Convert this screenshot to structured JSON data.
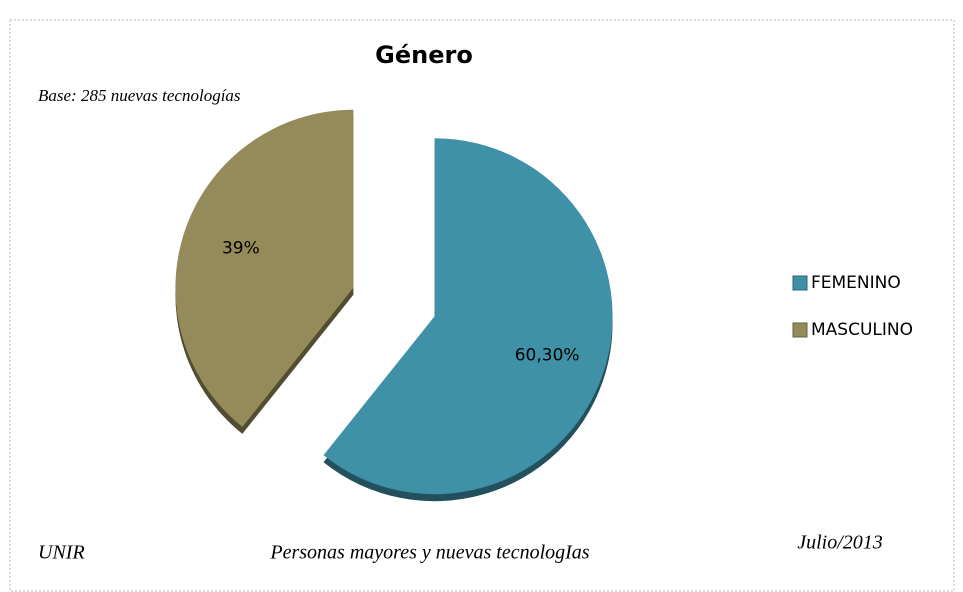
{
  "chart_data": {
    "type": "pie",
    "title": "Género",
    "subtitle": "Base: 285 nuevas tecnologías",
    "categories": [
      "FEMENINO",
      "MASCULINO"
    ],
    "values": [
      60.3,
      39
    ],
    "value_labels": [
      "60,30%",
      "39%"
    ],
    "colors": [
      "#3f91a8",
      "#958b5a"
    ],
    "legend": "right",
    "footer": {
      "left": "UNIR",
      "center": "Personas mayores y nuevas tecnologIas",
      "right": "Julio/2013"
    }
  }
}
